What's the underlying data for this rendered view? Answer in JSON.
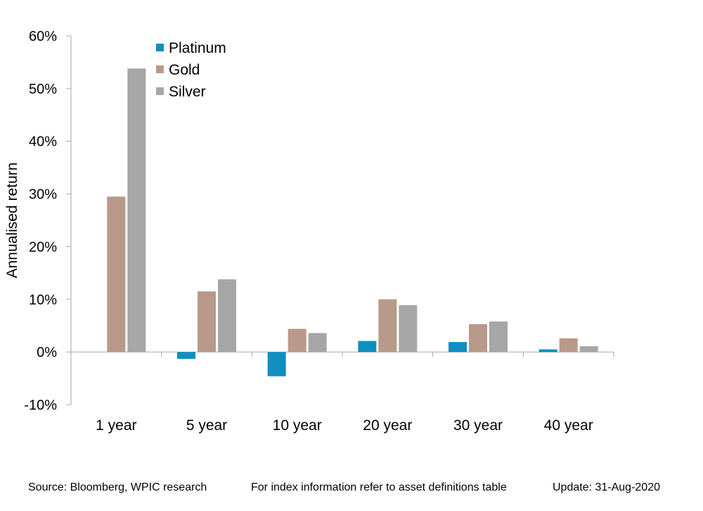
{
  "chart_data": {
    "type": "bar",
    "title": "",
    "xlabel": "",
    "ylabel": "Annualised return",
    "categories": [
      "1 year",
      "5 year",
      "10 year",
      "20 year",
      "30 year",
      "40 year"
    ],
    "series": [
      {
        "name": "Platinum",
        "color": "#0F8FC0",
        "values": [
          0.0,
          -1.3,
          -4.6,
          2.1,
          1.9,
          0.5
        ]
      },
      {
        "name": "Gold",
        "color": "#B8998A",
        "values": [
          29.5,
          11.5,
          4.4,
          10.0,
          5.3,
          2.6
        ]
      },
      {
        "name": "Silver",
        "color": "#A6A6A6",
        "values": [
          53.8,
          13.8,
          3.6,
          8.9,
          5.8,
          1.1
        ]
      }
    ],
    "ylim": [
      -10,
      60
    ],
    "yticks": [
      -10,
      0,
      10,
      20,
      30,
      40,
      50,
      60
    ],
    "ytick_labels": [
      "-10%",
      "0%",
      "10%",
      "20%",
      "30%",
      "40%",
      "50%",
      "60%"
    ],
    "legend_position": "top-left",
    "grid": false
  },
  "footer": {
    "source": "Source: Bloomberg, WPIC research",
    "index_note": "For index information refer to asset definitions table",
    "update": "Update: 31-Aug-2020"
  }
}
